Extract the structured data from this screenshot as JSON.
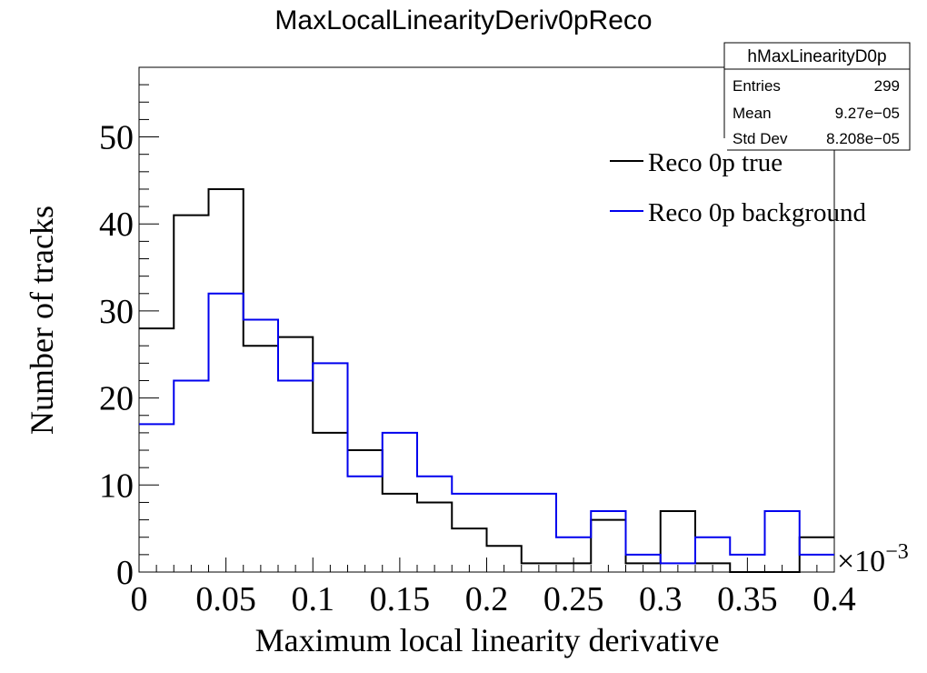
{
  "chart_data": {
    "type": "bar",
    "title": "MaxLocalLinearityDeriv0pReco",
    "xlabel": "Maximum local linearity derivative",
    "ylabel": "Number of tracks",
    "x_multiplier": "×10",
    "x_multiplier_exp": "−3",
    "xlim": [
      0,
      0.4
    ],
    "ylim": [
      0,
      58
    ],
    "bin_edges": [
      0,
      0.02,
      0.04,
      0.06,
      0.08,
      0.1,
      0.12,
      0.14,
      0.16,
      0.18,
      0.2,
      0.22,
      0.24,
      0.26,
      0.28,
      0.3,
      0.32,
      0.34,
      0.36,
      0.38,
      0.4
    ],
    "x_ticks": [
      0,
      0.05,
      0.1,
      0.15,
      0.2,
      0.25,
      0.3,
      0.35,
      0.4
    ],
    "x_tick_labels": [
      "0",
      "0.05",
      "0.1",
      "0.15",
      "0.2",
      "0.25",
      "0.3",
      "0.35",
      "0.4"
    ],
    "y_ticks": [
      0,
      10,
      20,
      30,
      40,
      50
    ],
    "y_tick_labels": [
      "0",
      "10",
      "20",
      "30",
      "40",
      "50"
    ],
    "series": [
      {
        "name": "Reco 0p true",
        "color": "#000000",
        "values": [
          28,
          41,
          44,
          26,
          27,
          16,
          14,
          9,
          8,
          5,
          3,
          1,
          1,
          6,
          1,
          7,
          1,
          0,
          0,
          4
        ]
      },
      {
        "name": "Reco 0p background",
        "color": "#0000ee",
        "values": [
          17,
          22,
          32,
          29,
          22,
          24,
          11,
          16,
          11,
          9,
          9,
          9,
          4,
          7,
          2,
          1,
          4,
          2,
          7,
          2
        ]
      }
    ],
    "legend_position": "top-right",
    "stats_box": {
      "name": "hMaxLinearityD0p",
      "rows": [
        {
          "label": "Entries",
          "value": "299"
        },
        {
          "label": "Mean",
          "value": "9.27e−05"
        },
        {
          "label": "Std Dev",
          "value": "8.208e−05"
        }
      ]
    }
  }
}
